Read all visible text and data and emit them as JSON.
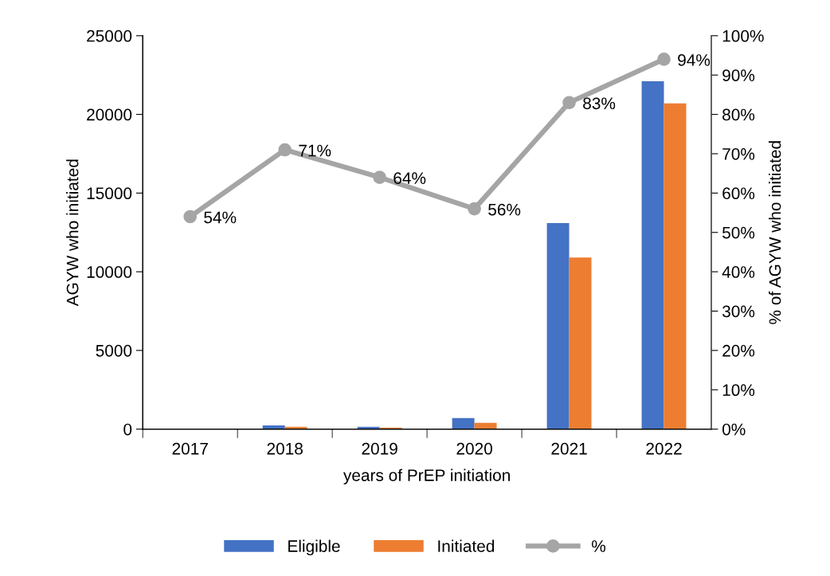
{
  "chart_data": {
    "type": "bar",
    "xlabel": "years of PrEP initiation",
    "ylabel": "AGYW who initiated",
    "y2label": "% of AGYW who initiated",
    "categories": [
      "2017",
      "2018",
      "2019",
      "2020",
      "2021",
      "2022"
    ],
    "series": [
      {
        "name": "Eligible",
        "color": "#4472c4",
        "values": [
          20,
          240,
          150,
          700,
          13100,
          22100
        ]
      },
      {
        "name": "Initiated",
        "color": "#ed7d31",
        "values": [
          11,
          150,
          100,
          400,
          10900,
          20700
        ]
      },
      {
        "name": "%",
        "type": "line",
        "axis": "y2",
        "color": "#a5a5a5",
        "marker": "circle",
        "values": [
          54,
          71,
          64,
          56,
          83,
          94
        ],
        "value_labels": [
          "54%",
          "71%",
          "64%",
          "56%",
          "83%",
          "94%"
        ]
      }
    ],
    "ylim": [
      0,
      25000
    ],
    "yticks": [
      0,
      5000,
      10000,
      15000,
      20000,
      25000
    ],
    "y2lim": [
      0,
      100
    ],
    "y2ticks": [
      {
        "value": 0,
        "label": "0%"
      },
      {
        "value": 10,
        "label": "10%"
      },
      {
        "value": 20,
        "label": "20%"
      },
      {
        "value": 30,
        "label": "30%"
      },
      {
        "value": 40,
        "label": "40%"
      },
      {
        "value": 50,
        "label": "50%"
      },
      {
        "value": 60,
        "label": "60%"
      },
      {
        "value": 70,
        "label": "70%"
      },
      {
        "value": 80,
        "label": "80%"
      },
      {
        "value": 90,
        "label": "90%"
      },
      {
        "value": 100,
        "label": "100%"
      }
    ],
    "grid": false,
    "legend": "bottom"
  }
}
